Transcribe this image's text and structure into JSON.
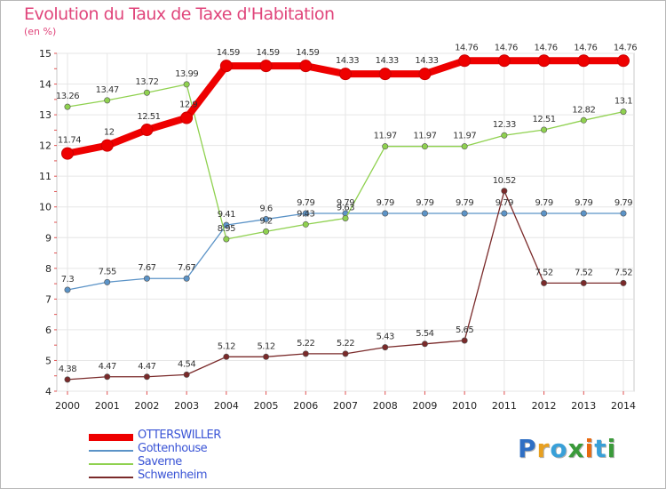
{
  "header": {
    "title": "Evolution du Taux de Taxe d'Habitation",
    "subtitle": "(en %)"
  },
  "brand": {
    "logo_text": "Proxiti",
    "logo_colors": [
      "#2f6fc4",
      "#e8a020",
      "#39a0d8",
      "#3a9a3a",
      "#e86a10",
      "#39a0d8",
      "#3a9a3a"
    ]
  },
  "chart_data": {
    "type": "line",
    "title": "Evolution du Taux de Taxe d'Habitation",
    "subtitle": "(en %)",
    "x": [
      2000,
      2001,
      2002,
      2003,
      2004,
      2005,
      2006,
      2007,
      2008,
      2009,
      2010,
      2011,
      2012,
      2013,
      2014
    ],
    "ylim": [
      4,
      15
    ],
    "yticks": [
      4,
      5,
      6,
      7,
      8,
      9,
      10,
      11,
      12,
      13,
      14,
      15
    ],
    "grid": true,
    "legend_position": "bottom-left",
    "series": [
      {
        "name": "OTTERSWILLER",
        "color": "#ee0000",
        "labels": [
          "11.74",
          "12",
          "12.51",
          "12.9",
          "14.59",
          "14.59",
          "14.59",
          "14.33",
          "14.33",
          "14.33",
          "14.76",
          "14.76",
          "14.76",
          "14.76",
          "14.76"
        ],
        "values": [
          11.74,
          12,
          12.51,
          12.9,
          14.59,
          14.59,
          14.59,
          14.33,
          14.33,
          14.33,
          14.76,
          14.76,
          14.76,
          14.76,
          14.76
        ]
      },
      {
        "name": "Gottenhouse",
        "color": "#5b93c7",
        "labels": [
          "7.3",
          "7.55",
          "7.67",
          "7.67",
          "9.41",
          "9.6",
          "9.79",
          "9.79",
          "9.79",
          "9.79",
          "9.79",
          "9.79",
          "9.79",
          "9.79",
          "9.79"
        ],
        "values": [
          7.3,
          7.55,
          7.67,
          7.67,
          9.41,
          9.6,
          9.79,
          9.79,
          9.79,
          9.79,
          9.79,
          9.79,
          9.79,
          9.79,
          9.79
        ]
      },
      {
        "name": "Saverne",
        "color": "#8fd14f",
        "labels": [
          "13.26",
          "13.47",
          "13.72",
          "13.99",
          "8.95",
          "9.2",
          "9.43",
          "9.63",
          "11.97",
          "11.97",
          "11.97",
          "12.33",
          "12.51",
          "12.82",
          "13.1"
        ],
        "values": [
          13.26,
          13.47,
          13.72,
          13.99,
          8.95,
          9.2,
          9.43,
          9.63,
          11.97,
          11.97,
          11.97,
          12.33,
          12.51,
          12.82,
          13.1
        ]
      },
      {
        "name": "Schwenheim",
        "color": "#7a2a2a",
        "labels": [
          "4.38",
          "4.47",
          "4.47",
          "4.54",
          "5.12",
          "5.12",
          "5.22",
          "5.22",
          "5.43",
          "5.54",
          "5.65",
          "10.52",
          "7.52",
          "7.52",
          "7.52"
        ],
        "values": [
          4.38,
          4.47,
          4.47,
          4.54,
          5.12,
          5.12,
          5.22,
          5.22,
          5.43,
          5.54,
          5.65,
          10.52,
          7.52,
          7.52,
          7.52
        ]
      }
    ]
  }
}
